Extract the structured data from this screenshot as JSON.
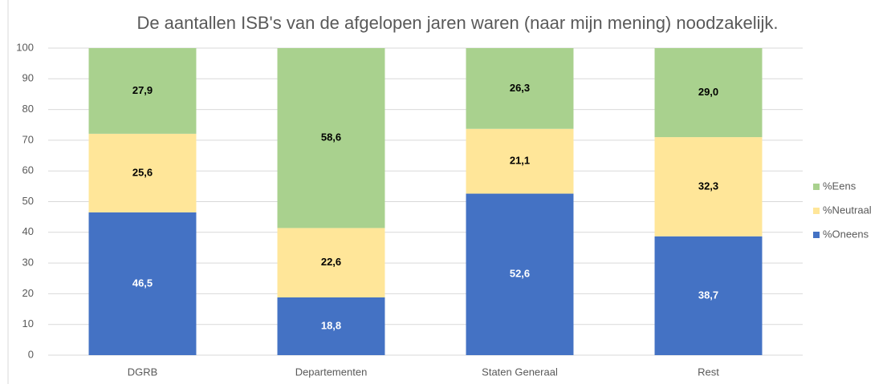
{
  "chart_data": {
    "type": "bar",
    "stacked": true,
    "title": "De aantallen ISB's van de afgelopen jaren waren (naar mijn mening) noodzakelijk.",
    "categories": [
      "DGRB",
      "Departementen",
      "Staten Generaal",
      "Rest"
    ],
    "series": [
      {
        "name": "%Oneens",
        "color": "#4472c4",
        "values": [
          46.5,
          18.8,
          52.6,
          38.7
        ],
        "value_labels": [
          "46,5",
          "18,8",
          "52,6",
          "38,7"
        ]
      },
      {
        "name": "%Neutraal",
        "color": "#ffe699",
        "values": [
          25.6,
          22.6,
          21.1,
          32.3
        ],
        "value_labels": [
          "25,6",
          "22,6",
          "21,1",
          "32,3"
        ]
      },
      {
        "name": "%Eens",
        "color": "#a9d18e",
        "values": [
          27.9,
          58.6,
          26.3,
          29.0
        ],
        "value_labels": [
          "27,9",
          "58,6",
          "26,3",
          "29,0"
        ]
      }
    ],
    "ylim": [
      0,
      100
    ],
    "yticks": [
      0,
      10,
      20,
      30,
      40,
      50,
      60,
      70,
      80,
      90,
      100
    ],
    "grid": true,
    "legend": "right"
  }
}
